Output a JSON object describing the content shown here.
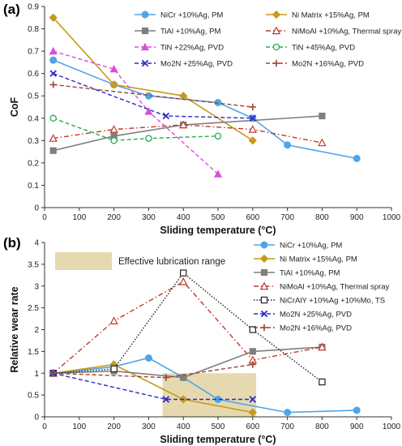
{
  "chart_data": [
    {
      "panel": "(a)",
      "type": "line",
      "xlabel": "Sliding temperature (°C)",
      "ylabel": "CoF",
      "xlim": [
        0,
        1000
      ],
      "ylim": [
        0,
        0.9
      ],
      "xticks": [
        0,
        100,
        200,
        300,
        400,
        500,
        600,
        700,
        800,
        900,
        1000
      ],
      "yticks": [
        0,
        0.1,
        0.2,
        0.3,
        0.4,
        0.5,
        0.6,
        0.7,
        0.8,
        0.9
      ],
      "grid": false,
      "legend": "top-right",
      "series": [
        {
          "name": "NiCr +10%Ag, PM",
          "color": "#4ea5e8",
          "dash": "solid",
          "marker": "circle-filled",
          "x": [
            25,
            200,
            300,
            500,
            600,
            700,
            900
          ],
          "y": [
            0.66,
            0.55,
            0.5,
            0.47,
            0.4,
            0.28,
            0.22
          ]
        },
        {
          "name": "Ni Matrix +15%Ag, PM",
          "color": "#c79a1c",
          "dash": "solid",
          "marker": "diamond-filled",
          "x": [
            25,
            200,
            400,
            600
          ],
          "y": [
            0.85,
            0.55,
            0.5,
            0.3
          ]
        },
        {
          "name": "TiAl +10%Ag, PM",
          "color": "#7f7f7f",
          "dash": "solid",
          "marker": "square-filled",
          "x": [
            25,
            200,
            400,
            800
          ],
          "y": [
            0.255,
            0.32,
            0.37,
            0.41
          ]
        },
        {
          "name": "NiMoAl +10%Ag, Thermal spray",
          "color": "#c0392b",
          "dash": "dashdot",
          "marker": "triangle-open",
          "x": [
            25,
            200,
            400,
            600,
            800
          ],
          "y": [
            0.31,
            0.35,
            0.37,
            0.35,
            0.29
          ]
        },
        {
          "name": "TiN +22%Ag, PVD",
          "color": "#d94fd9",
          "dash": "dashed",
          "marker": "triangle-filled",
          "x": [
            25,
            200,
            300,
            500
          ],
          "y": [
            0.7,
            0.62,
            0.43,
            0.15
          ]
        },
        {
          "name": "TiN +45%Ag, PVD",
          "color": "#2eab4f",
          "dash": "dashed",
          "marker": "circle-open",
          "x": [
            25,
            200,
            300,
            500
          ],
          "y": [
            0.4,
            0.3,
            0.31,
            0.32
          ]
        },
        {
          "name": "Mo2N +25%Ag, PVD",
          "color": "#2a2ac8",
          "dash": "dashed",
          "marker": "x",
          "x": [
            25,
            350,
            600
          ],
          "y": [
            0.6,
            0.41,
            0.4
          ]
        },
        {
          "name": "Mo2N +16%Ag, PVD",
          "color": "#a0442c",
          "dash": "dashed",
          "marker": "plus",
          "x": [
            25,
            600
          ],
          "y": [
            0.55,
            0.45
          ]
        }
      ]
    },
    {
      "panel": "(b)",
      "type": "line",
      "xlabel": "Sliding temperature (°C)",
      "ylabel": "Relative wear rate",
      "xlim": [
        0,
        1000
      ],
      "ylim": [
        0,
        4
      ],
      "xticks": [
        0,
        100,
        200,
        300,
        400,
        500,
        600,
        700,
        800,
        900,
        1000
      ],
      "yticks": [
        0,
        0.5,
        1,
        1.5,
        2,
        2.5,
        3,
        3.5,
        4
      ],
      "grid": false,
      "legend": "top-right",
      "annotation": {
        "text": "Effective lubrication range",
        "color": "#e6d9b0"
      },
      "shaded_range": {
        "x": [
          340,
          610
        ],
        "y": [
          0,
          1
        ]
      },
      "series": [
        {
          "name": "NiCr +10%Ag, PM",
          "color": "#4ea5e8",
          "dash": "solid",
          "marker": "circle-filled",
          "x": [
            25,
            200,
            300,
            400,
            500,
            700,
            900
          ],
          "y": [
            1,
            1.15,
            1.35,
            0.9,
            0.4,
            0.1,
            0.15
          ]
        },
        {
          "name": "Ni Matrix +15%Ag, PM",
          "color": "#c79a1c",
          "dash": "solid",
          "marker": "diamond-filled",
          "x": [
            25,
            200,
            400,
            600
          ],
          "y": [
            1,
            1.2,
            0.4,
            0.1
          ]
        },
        {
          "name": "TiAl +10%Ag, PM",
          "color": "#7f7f7f",
          "dash": "solid",
          "marker": "square-filled",
          "x": [
            25,
            200,
            400,
            600,
            800
          ],
          "y": [
            1,
            1.05,
            0.9,
            1.5,
            1.6
          ]
        },
        {
          "name": "NiMoAl +10%Ag, Thermal spray",
          "color": "#c0392b",
          "dash": "dashdot",
          "marker": "triangle-open",
          "x": [
            25,
            200,
            400,
            600,
            800
          ],
          "y": [
            1,
            2.2,
            3.1,
            1.3,
            1.6
          ]
        },
        {
          "name": "NiCrAlY +10%Ag +10%Mo, TS",
          "color": "#222222",
          "dash": "dotted",
          "marker": "square-open",
          "x": [
            25,
            200,
            400,
            600,
            800
          ],
          "y": [
            1,
            1.1,
            3.3,
            2.0,
            0.8
          ]
        },
        {
          "name": "Mo2N +25%Ag, PVD",
          "color": "#2a2ac8",
          "dash": "dashed",
          "marker": "x",
          "x": [
            25,
            350,
            600
          ],
          "y": [
            1,
            0.4,
            0.4
          ]
        },
        {
          "name": "Mo2N +16%Ag, PVD",
          "color": "#a0442c",
          "dash": "dashed",
          "marker": "plus",
          "x": [
            25,
            350,
            600
          ],
          "y": [
            1,
            0.9,
            1.2
          ]
        }
      ]
    }
  ]
}
